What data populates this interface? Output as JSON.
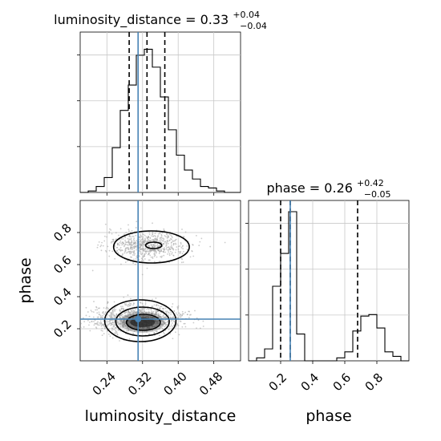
{
  "chart_data": {
    "type": "corner",
    "parameters": [
      "luminosity_distance",
      "phase"
    ],
    "truths": {
      "luminosity_distance": 0.31,
      "phase": 0.26
    },
    "panels": [
      {
        "id": "luminosity_distance-hist",
        "type": "histogram",
        "title_prefix": "luminosity_distance = 0.33",
        "title_sup": "+0.04",
        "title_sub": "−0.04",
        "xlim": [
          0.18,
          0.54
        ],
        "ylim": [
          0,
          1
        ],
        "bins": [
          0.18,
          0.198,
          0.216,
          0.234,
          0.252,
          0.27,
          0.288,
          0.306,
          0.324,
          0.342,
          0.36,
          0.378,
          0.396,
          0.414,
          0.432,
          0.45,
          0.468,
          0.486,
          0.504,
          0.522,
          0.54
        ],
        "counts": [
          0.0,
          0.01,
          0.04,
          0.1,
          0.3,
          0.55,
          0.72,
          0.92,
          0.96,
          0.84,
          0.64,
          0.42,
          0.25,
          0.15,
          0.09,
          0.04,
          0.03,
          0.01,
          0.0,
          0.0
        ],
        "quantiles": [
          0.29,
          0.33,
          0.37
        ],
        "truth": 0.31,
        "x_ticks": [
          0.24,
          0.32,
          0.4,
          0.48
        ],
        "y_ticks": [
          0.2,
          0.45,
          0.7
        ],
        "show_xtick_labels": false
      },
      {
        "id": "phase-hist",
        "type": "histogram",
        "title_prefix": "phase = 0.26",
        "title_sup": "+0.42",
        "title_sub": "−0.05",
        "xlim": [
          0.0,
          1.0
        ],
        "ylim": [
          0,
          1
        ],
        "bins": [
          0.0,
          0.05,
          0.1,
          0.15,
          0.2,
          0.25,
          0.3,
          0.35,
          0.4,
          0.45,
          0.5,
          0.55,
          0.6,
          0.65,
          0.7,
          0.75,
          0.8,
          0.85,
          0.9,
          0.95,
          1.0
        ],
        "counts": [
          0.0,
          0.02,
          0.08,
          0.5,
          0.72,
          1.0,
          0.18,
          0.0,
          0.0,
          0.0,
          0.0,
          0.02,
          0.06,
          0.2,
          0.3,
          0.31,
          0.22,
          0.06,
          0.03,
          0.0
        ],
        "quantiles": [
          0.2,
          0.26,
          0.68
        ],
        "truth": 0.26,
        "x_ticks": [
          0.2,
          0.4,
          0.6,
          0.8
        ],
        "x_tick_labels": [
          "0.2",
          "0.4",
          "0.6",
          "0.8"
        ],
        "y_ticks": [
          0.2,
          0.45,
          0.7
        ],
        "xlabel": "phase"
      },
      {
        "id": "joint",
        "type": "2d-density",
        "xlim": [
          0.18,
          0.54
        ],
        "ylim": [
          0.0,
          1.0
        ],
        "x_ticks": [
          0.24,
          0.32,
          0.4,
          0.48
        ],
        "x_tick_labels": [
          "0.24",
          "0.32",
          "0.40",
          "0.48"
        ],
        "y_ticks": [
          0.2,
          0.4,
          0.6,
          0.8
        ],
        "y_tick_labels": [
          "0.2",
          "0.4",
          "0.6",
          "0.8"
        ],
        "xlabel": "luminosity_distance",
        "ylabel": "phase",
        "clusters": [
          {
            "cx": 0.33,
            "cy": 0.72,
            "sx": 0.045,
            "sy": 0.045,
            "n": 700
          },
          {
            "cx": 0.31,
            "cy": 0.26,
            "sx": 0.05,
            "sy": 0.045,
            "n": 1100
          }
        ],
        "truth": [
          0.31,
          0.26
        ]
      }
    ],
    "colors": {
      "truth": "#4682b4",
      "hist": "#000000",
      "grid": "#c8c8c8",
      "scatter": "#a0a0a0",
      "density_dark": "#202020"
    }
  }
}
